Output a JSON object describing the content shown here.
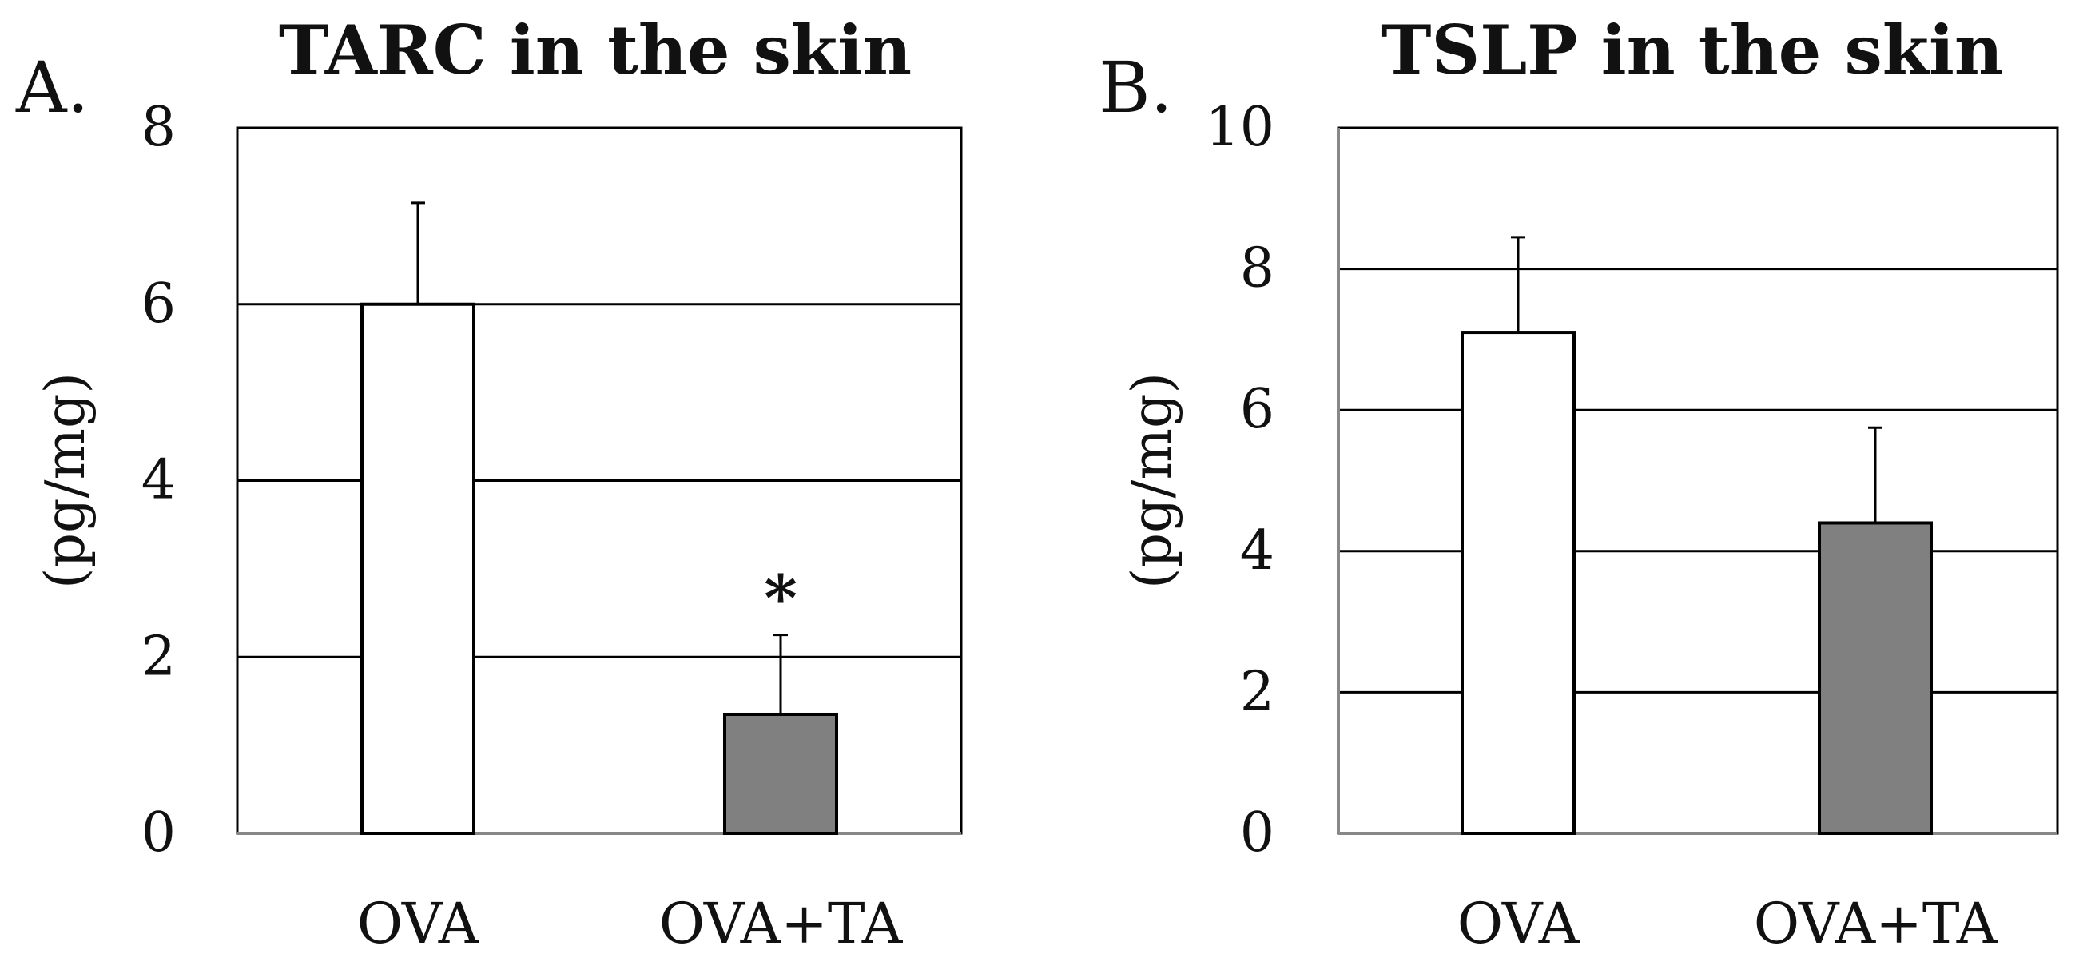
{
  "chart_data": [
    {
      "type": "bar",
      "panel_label": "A.",
      "title": "TARC in the skin",
      "ylabel": "(pg/mg)",
      "xlabel": "",
      "categories": [
        "OVA",
        "OVA+TA"
      ],
      "values": [
        6.0,
        1.35
      ],
      "error": [
        1.15,
        0.9
      ],
      "colors": [
        "#ffffff",
        "#808080"
      ],
      "annotations": [
        "",
        "*"
      ],
      "ylim": [
        0,
        8
      ],
      "yticks": [
        0,
        2,
        4,
        6,
        8
      ],
      "grid": true
    },
    {
      "type": "bar",
      "panel_label": "B.",
      "title": "TSLP in the skin",
      "ylabel": "(pg/mg)",
      "xlabel": "",
      "categories": [
        "OVA",
        "OVA+TA"
      ],
      "values": [
        7.1,
        4.4
      ],
      "error": [
        1.35,
        1.35
      ],
      "colors": [
        "#ffffff",
        "#808080"
      ],
      "annotations": [
        "",
        ""
      ],
      "ylim": [
        0,
        10
      ],
      "yticks": [
        0,
        2,
        4,
        6,
        8,
        10
      ],
      "grid": true
    }
  ]
}
